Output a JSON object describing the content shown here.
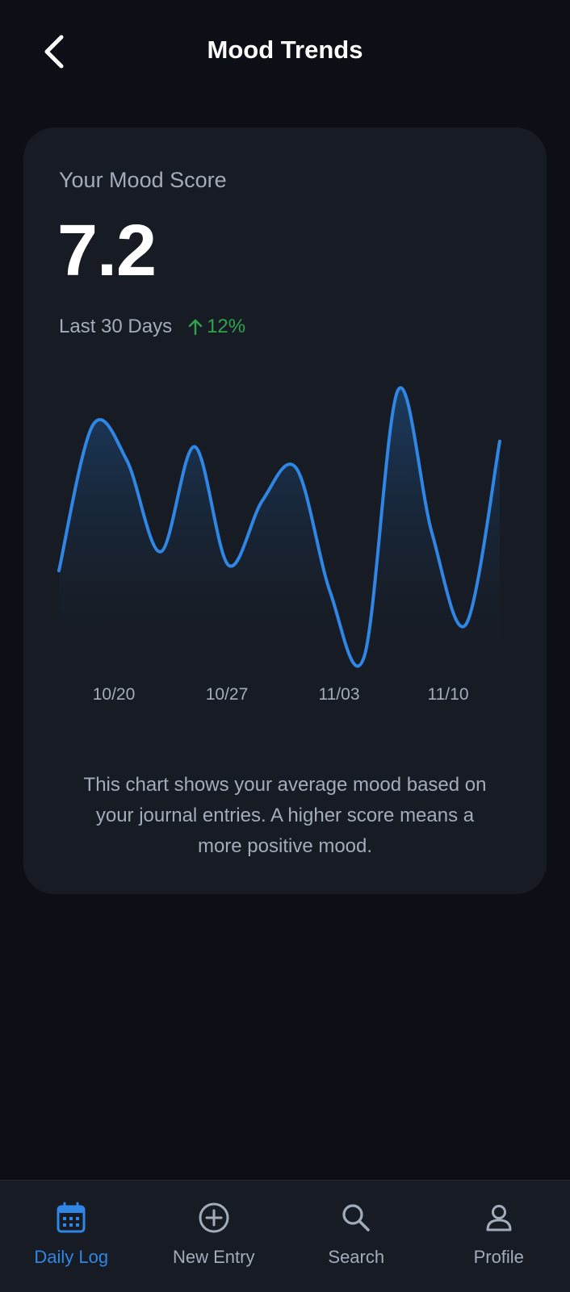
{
  "header": {
    "title": "Mood Trends",
    "back_icon": "chevron-left-icon"
  },
  "card": {
    "score_label": "Your Mood Score",
    "score_value": "7.2",
    "period_label": "Last 30 Days",
    "trend_value": "12%",
    "trend_icon": "arrow-up-icon",
    "trend_color": "#2ea44f",
    "description": "This chart shows your average mood based on your journal entries. A higher score means a more positive mood."
  },
  "chart_data": {
    "type": "area",
    "x_tick_labels": [
      "10/20",
      "10/27",
      "11/03",
      "11/10"
    ],
    "values": [
      3.2,
      8.6,
      7.3,
      3.9,
      7.8,
      3.4,
      5.8,
      7.0,
      2.4,
      0.0,
      9.9,
      4.6,
      1.2,
      8.0
    ],
    "ylim": [
      0,
      10
    ],
    "grid": false,
    "line_color": "#2f86e4"
  },
  "nav": {
    "items": [
      {
        "label": "Daily Log",
        "icon": "calendar-icon",
        "active": true
      },
      {
        "label": "New Entry",
        "icon": "plus-circle-icon",
        "active": false
      },
      {
        "label": "Search",
        "icon": "search-icon",
        "active": false
      },
      {
        "label": "Profile",
        "icon": "user-icon",
        "active": false
      }
    ],
    "active_color": "#2f86e4",
    "inactive_color": "#a3acba"
  }
}
